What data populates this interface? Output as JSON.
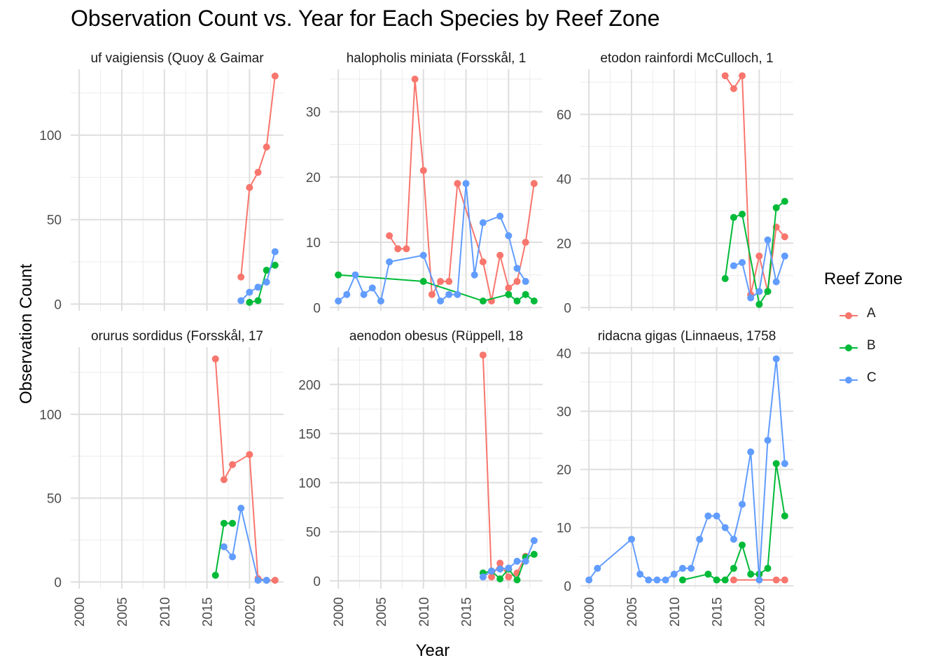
{
  "chart_data": {
    "type": "line",
    "title": "Observation Count vs. Year for Each Species by Reef Zone",
    "xlabel": "Year",
    "ylabel": "Observation Count",
    "legend": {
      "title": "Reef Zone",
      "placement": "right",
      "entries": [
        {
          "name": "A",
          "color": "#F8766D"
        },
        {
          "name": "B",
          "color": "#00BA38"
        },
        {
          "name": "C",
          "color": "#619CFF"
        }
      ]
    },
    "x_ticks": [
      2000,
      2005,
      2010,
      2015,
      2020
    ],
    "xlim": [
      1999,
      2024
    ],
    "grid": true,
    "panels": [
      {
        "title": "uf vaigiensis (Quoy & Gaimar",
        "ylim": [
          -4,
          139
        ],
        "y_ticks": [
          0,
          50,
          100
        ],
        "series": [
          {
            "name": "A",
            "x": [
              2019,
              2020,
              2021,
              2022,
              2023
            ],
            "y": [
              16,
              69,
              78,
              93,
              135
            ]
          },
          {
            "name": "B",
            "x": [
              2020,
              2021,
              2022,
              2023
            ],
            "y": [
              1,
              2,
              20,
              23
            ]
          },
          {
            "name": "C",
            "x": [
              2019,
              2020,
              2021,
              2022,
              2023
            ],
            "y": [
              2,
              7,
              10,
              13,
              31
            ]
          }
        ]
      },
      {
        "title": "halopholis miniata (Forsskål, 1",
        "ylim": [
          -0.5,
          36.5
        ],
        "y_ticks": [
          0,
          10,
          20,
          30
        ],
        "series": [
          {
            "name": "A",
            "x": [
              2006,
              2007,
              2008,
              2009,
              2010,
              2011,
              2012,
              2013,
              2014,
              2017,
              2018,
              2019,
              2020,
              2021,
              2022,
              2023
            ],
            "y": [
              11,
              9,
              9,
              35,
              21,
              2,
              4,
              4,
              19,
              7,
              1,
              8,
              3,
              4,
              10,
              19
            ]
          },
          {
            "name": "B",
            "x": [
              2000,
              2010,
              2017,
              2020,
              2021,
              2022,
              2023
            ],
            "y": [
              5,
              4,
              1,
              2,
              1,
              2,
              1
            ]
          },
          {
            "name": "C",
            "x": [
              2000,
              2001,
              2002,
              2003,
              2004,
              2005,
              2006,
              2010,
              2012,
              2013,
              2014,
              2015,
              2016,
              2017,
              2019,
              2020,
              2021,
              2022
            ],
            "y": [
              1,
              2,
              5,
              2,
              3,
              1,
              7,
              8,
              1,
              2,
              2,
              19,
              5,
              13,
              14,
              11,
              6,
              4
            ]
          }
        ]
      },
      {
        "title": "etodon rainfordi McCulloch, 1",
        "ylim": [
          -1,
          74
        ],
        "y_ticks": [
          0,
          20,
          40,
          60
        ],
        "series": [
          {
            "name": "A",
            "x": [
              2016,
              2017,
              2018,
              2019,
              2020,
              2021,
              2022,
              2023
            ],
            "y": [
              72,
              68,
              72,
              4,
              16,
              5,
              25,
              22
            ]
          },
          {
            "name": "B",
            "x": [
              2016,
              2017,
              2018,
              2020,
              2021,
              2022,
              2023
            ],
            "y": [
              9,
              28,
              29,
              1,
              5,
              31,
              33
            ]
          },
          {
            "name": "C",
            "x": [
              2017,
              2018,
              2019,
              2020,
              2021,
              2022,
              2023
            ],
            "y": [
              13,
              14,
              3,
              5,
              21,
              8,
              16
            ]
          }
        ]
      },
      {
        "title": "orurus sordidus (Forsskål, 17",
        "ylim": [
          -4,
          140
        ],
        "y_ticks": [
          0,
          50,
          100
        ],
        "series": [
          {
            "name": "A",
            "x": [
              2016,
              2017,
              2018,
              2020,
              2021,
              2022,
              2023
            ],
            "y": [
              133,
              61,
              70,
              76,
              2,
              1,
              1
            ]
          },
          {
            "name": "B",
            "x": [
              2016,
              2017,
              2018
            ],
            "y": [
              4,
              35,
              35
            ]
          },
          {
            "name": "C",
            "x": [
              2017,
              2018,
              2019,
              2021,
              2022
            ],
            "y": [
              21,
              15,
              44,
              1,
              1
            ]
          }
        ]
      },
      {
        "title": "aenodon obesus (Rüppell, 18",
        "ylim": [
          -8,
          238
        ],
        "y_ticks": [
          0,
          50,
          100,
          150,
          200
        ],
        "series": [
          {
            "name": "A",
            "x": [
              2017,
              2018,
              2019,
              2020,
              2021,
              2022
            ],
            "y": [
              230,
              4,
              18,
              4,
              8,
              25
            ]
          },
          {
            "name": "B",
            "x": [
              2017,
              2018,
              2019,
              2020,
              2021,
              2022,
              2023
            ],
            "y": [
              8,
              10,
              2,
              12,
              1,
              24,
              27
            ]
          },
          {
            "name": "C",
            "x": [
              2017,
              2018,
              2019,
              2020,
              2021,
              2022,
              2023
            ],
            "y": [
              4,
              10,
              12,
              13,
              20,
              20,
              41
            ]
          }
        ]
      },
      {
        "title": "ridacna gigas (Linnaeus, 1758",
        "ylim": [
          -0.5,
          41
        ],
        "y_ticks": [
          0,
          10,
          20,
          30,
          40
        ],
        "series": [
          {
            "name": "A",
            "x": [
              2017,
              2022,
              2023
            ],
            "y": [
              1,
              1,
              1
            ]
          },
          {
            "name": "B",
            "x": [
              2011,
              2014,
              2015,
              2016,
              2017,
              2018,
              2019,
              2020,
              2021,
              2022,
              2023
            ],
            "y": [
              1,
              2,
              1,
              1,
              3,
              7,
              2,
              2,
              3,
              21,
              12
            ]
          },
          {
            "name": "C",
            "x": [
              2000,
              2001,
              2005,
              2006,
              2007,
              2008,
              2009,
              2010,
              2011,
              2012,
              2013,
              2014,
              2015,
              2016,
              2017,
              2018,
              2019,
              2020,
              2021,
              2022,
              2023
            ],
            "y": [
              1,
              3,
              8,
              2,
              1,
              1,
              1,
              2,
              3,
              3,
              8,
              12,
              12,
              10,
              8,
              14,
              23,
              1,
              25,
              39,
              21
            ]
          }
        ]
      }
    ]
  }
}
